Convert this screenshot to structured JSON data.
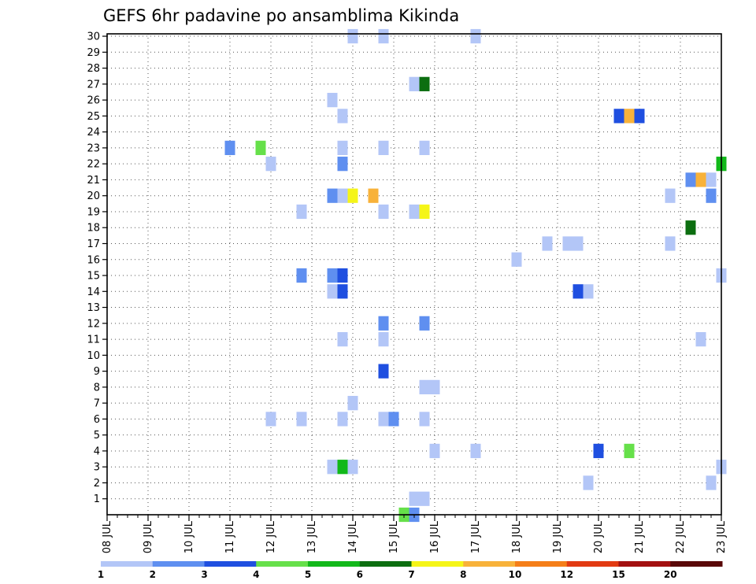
{
  "chart_data": {
    "type": "heatmap",
    "title": "GEFS 6hr padavine po ansamblima Kikinda",
    "x_tick_labels": [
      "08 JUL",
      "09 JUL",
      "10 JUL",
      "11 JUL",
      "12 JUL",
      "13 JUL",
      "14 JUL",
      "15 JUL",
      "16 JUL",
      "17 JUL",
      "18 JUL",
      "19 JUL",
      "20 JUL",
      "21 JUL",
      "22 JUL",
      "23 JUL"
    ],
    "y_tick_labels": [
      "1",
      "2",
      "3",
      "4",
      "5",
      "6",
      "7",
      "8",
      "9",
      "10",
      "11",
      "12",
      "13",
      "14",
      "15",
      "16",
      "17",
      "18",
      "19",
      "20",
      "21",
      "22",
      "23",
      "24",
      "25",
      "26",
      "27",
      "28",
      "29",
      "30"
    ],
    "xlim_days": [
      0,
      15
    ],
    "ylim": [
      0,
      30
    ],
    "grid": true,
    "time_step_days": 0.25,
    "colorbar": {
      "labels": [
        "1",
        "2",
        "3",
        "4",
        "5",
        "6",
        "7",
        "8",
        "10",
        "12",
        "15",
        "20"
      ],
      "colors": [
        "#b3c6f7",
        "#5f8ff0",
        "#1f4fe0",
        "#66e04a",
        "#12b81a",
        "#0c6e10",
        "#f5f518",
        "#f8b23a",
        "#f57e18",
        "#e23a12",
        "#a31010",
        "#5a0808"
      ]
    },
    "cells": [
      {
        "day": 7.25,
        "member": 0,
        "color": "#66e04a"
      },
      {
        "day": 7.5,
        "member": 0,
        "color": "#5f8ff0"
      },
      {
        "day": 7.5,
        "member": 1,
        "color": "#b3c6f7"
      },
      {
        "day": 7.75,
        "member": 1,
        "color": "#b3c6f7"
      },
      {
        "day": 11.75,
        "member": 2,
        "color": "#b3c6f7"
      },
      {
        "day": 14.75,
        "member": 2,
        "color": "#b3c6f7"
      },
      {
        "day": 5.5,
        "member": 3,
        "color": "#b3c6f7"
      },
      {
        "day": 5.75,
        "member": 3,
        "color": "#12b81a"
      },
      {
        "day": 6.0,
        "member": 3,
        "color": "#b3c6f7"
      },
      {
        "day": 15.0,
        "member": 3,
        "color": "#b3c6f7"
      },
      {
        "day": 8.0,
        "member": 4,
        "color": "#b3c6f7"
      },
      {
        "day": 9.0,
        "member": 4,
        "color": "#b3c6f7"
      },
      {
        "day": 12.0,
        "member": 4,
        "color": "#1f4fe0"
      },
      {
        "day": 12.75,
        "member": 4,
        "color": "#66e04a"
      },
      {
        "day": 4.0,
        "member": 6,
        "color": "#b3c6f7"
      },
      {
        "day": 4.75,
        "member": 6,
        "color": "#b3c6f7"
      },
      {
        "day": 5.75,
        "member": 6,
        "color": "#b3c6f7"
      },
      {
        "day": 6.75,
        "member": 6,
        "color": "#b3c6f7"
      },
      {
        "day": 7.0,
        "member": 6,
        "color": "#5f8ff0"
      },
      {
        "day": 7.75,
        "member": 6,
        "color": "#b3c6f7"
      },
      {
        "day": 6.0,
        "member": 7,
        "color": "#b3c6f7"
      },
      {
        "day": 7.75,
        "member": 8,
        "color": "#b3c6f7"
      },
      {
        "day": 8.0,
        "member": 8,
        "color": "#b3c6f7"
      },
      {
        "day": 6.75,
        "member": 9,
        "color": "#1f4fe0"
      },
      {
        "day": 6.75,
        "member": 11,
        "color": "#b3c6f7"
      },
      {
        "day": 5.75,
        "member": 11,
        "color": "#b3c6f7"
      },
      {
        "day": 14.5,
        "member": 11,
        "color": "#b3c6f7"
      },
      {
        "day": 6.75,
        "member": 12,
        "color": "#5f8ff0"
      },
      {
        "day": 7.75,
        "member": 12,
        "color": "#5f8ff0"
      },
      {
        "day": 5.5,
        "member": 14,
        "color": "#b3c6f7"
      },
      {
        "day": 5.75,
        "member": 14,
        "color": "#1f4fe0"
      },
      {
        "day": 11.5,
        "member": 14,
        "color": "#1f4fe0"
      },
      {
        "day": 11.75,
        "member": 14,
        "color": "#b3c6f7"
      },
      {
        "day": 4.75,
        "member": 15,
        "color": "#5f8ff0"
      },
      {
        "day": 5.5,
        "member": 15,
        "color": "#5f8ff0"
      },
      {
        "day": 5.75,
        "member": 15,
        "color": "#1f4fe0"
      },
      {
        "day": 15.0,
        "member": 15,
        "color": "#b3c6f7"
      },
      {
        "day": 10.0,
        "member": 16,
        "color": "#b3c6f7"
      },
      {
        "day": 10.75,
        "member": 17,
        "color": "#b3c6f7"
      },
      {
        "day": 11.25,
        "member": 17,
        "color": "#b3c6f7"
      },
      {
        "day": 11.5,
        "member": 17,
        "color": "#b3c6f7"
      },
      {
        "day": 13.75,
        "member": 17,
        "color": "#b3c6f7"
      },
      {
        "day": 14.25,
        "member": 18,
        "color": "#0c6e10"
      },
      {
        "day": 4.75,
        "member": 19,
        "color": "#b3c6f7"
      },
      {
        "day": 6.75,
        "member": 19,
        "color": "#b3c6f7"
      },
      {
        "day": 7.5,
        "member": 19,
        "color": "#b3c6f7"
      },
      {
        "day": 7.75,
        "member": 19,
        "color": "#f5f518"
      },
      {
        "day": 5.5,
        "member": 20,
        "color": "#5f8ff0"
      },
      {
        "day": 5.75,
        "member": 20,
        "color": "#b3c6f7"
      },
      {
        "day": 6.0,
        "member": 20,
        "color": "#f5f518"
      },
      {
        "day": 6.5,
        "member": 20,
        "color": "#f8b23a"
      },
      {
        "day": 13.75,
        "member": 20,
        "color": "#b3c6f7"
      },
      {
        "day": 14.75,
        "member": 20,
        "color": "#5f8ff0"
      },
      {
        "day": 14.25,
        "member": 21,
        "color": "#5f8ff0"
      },
      {
        "day": 14.5,
        "member": 21,
        "color": "#f8b23a"
      },
      {
        "day": 14.75,
        "member": 21,
        "color": "#b3c6f7"
      },
      {
        "day": 4.0,
        "member": 22,
        "color": "#b3c6f7"
      },
      {
        "day": 5.75,
        "member": 22,
        "color": "#5f8ff0"
      },
      {
        "day": 15.0,
        "member": 22,
        "color": "#12b81a"
      },
      {
        "day": 3.0,
        "member": 23,
        "color": "#5f8ff0"
      },
      {
        "day": 3.75,
        "member": 23,
        "color": "#66e04a"
      },
      {
        "day": 5.75,
        "member": 23,
        "color": "#b3c6f7"
      },
      {
        "day": 6.75,
        "member": 23,
        "color": "#b3c6f7"
      },
      {
        "day": 7.75,
        "member": 23,
        "color": "#b3c6f7"
      },
      {
        "day": 5.75,
        "member": 25,
        "color": "#b3c6f7"
      },
      {
        "day": 12.5,
        "member": 25,
        "color": "#1f4fe0"
      },
      {
        "day": 12.75,
        "member": 25,
        "color": "#f8b23a"
      },
      {
        "day": 13.0,
        "member": 25,
        "color": "#1f4fe0"
      },
      {
        "day": 5.5,
        "member": 26,
        "color": "#b3c6f7"
      },
      {
        "day": 7.5,
        "member": 27,
        "color": "#b3c6f7"
      },
      {
        "day": 7.75,
        "member": 27,
        "color": "#0c6e10"
      },
      {
        "day": 6.0,
        "member": 30,
        "color": "#b3c6f7"
      },
      {
        "day": 6.75,
        "member": 30,
        "color": "#b3c6f7"
      },
      {
        "day": 9.0,
        "member": 30,
        "color": "#b3c6f7"
      }
    ]
  }
}
